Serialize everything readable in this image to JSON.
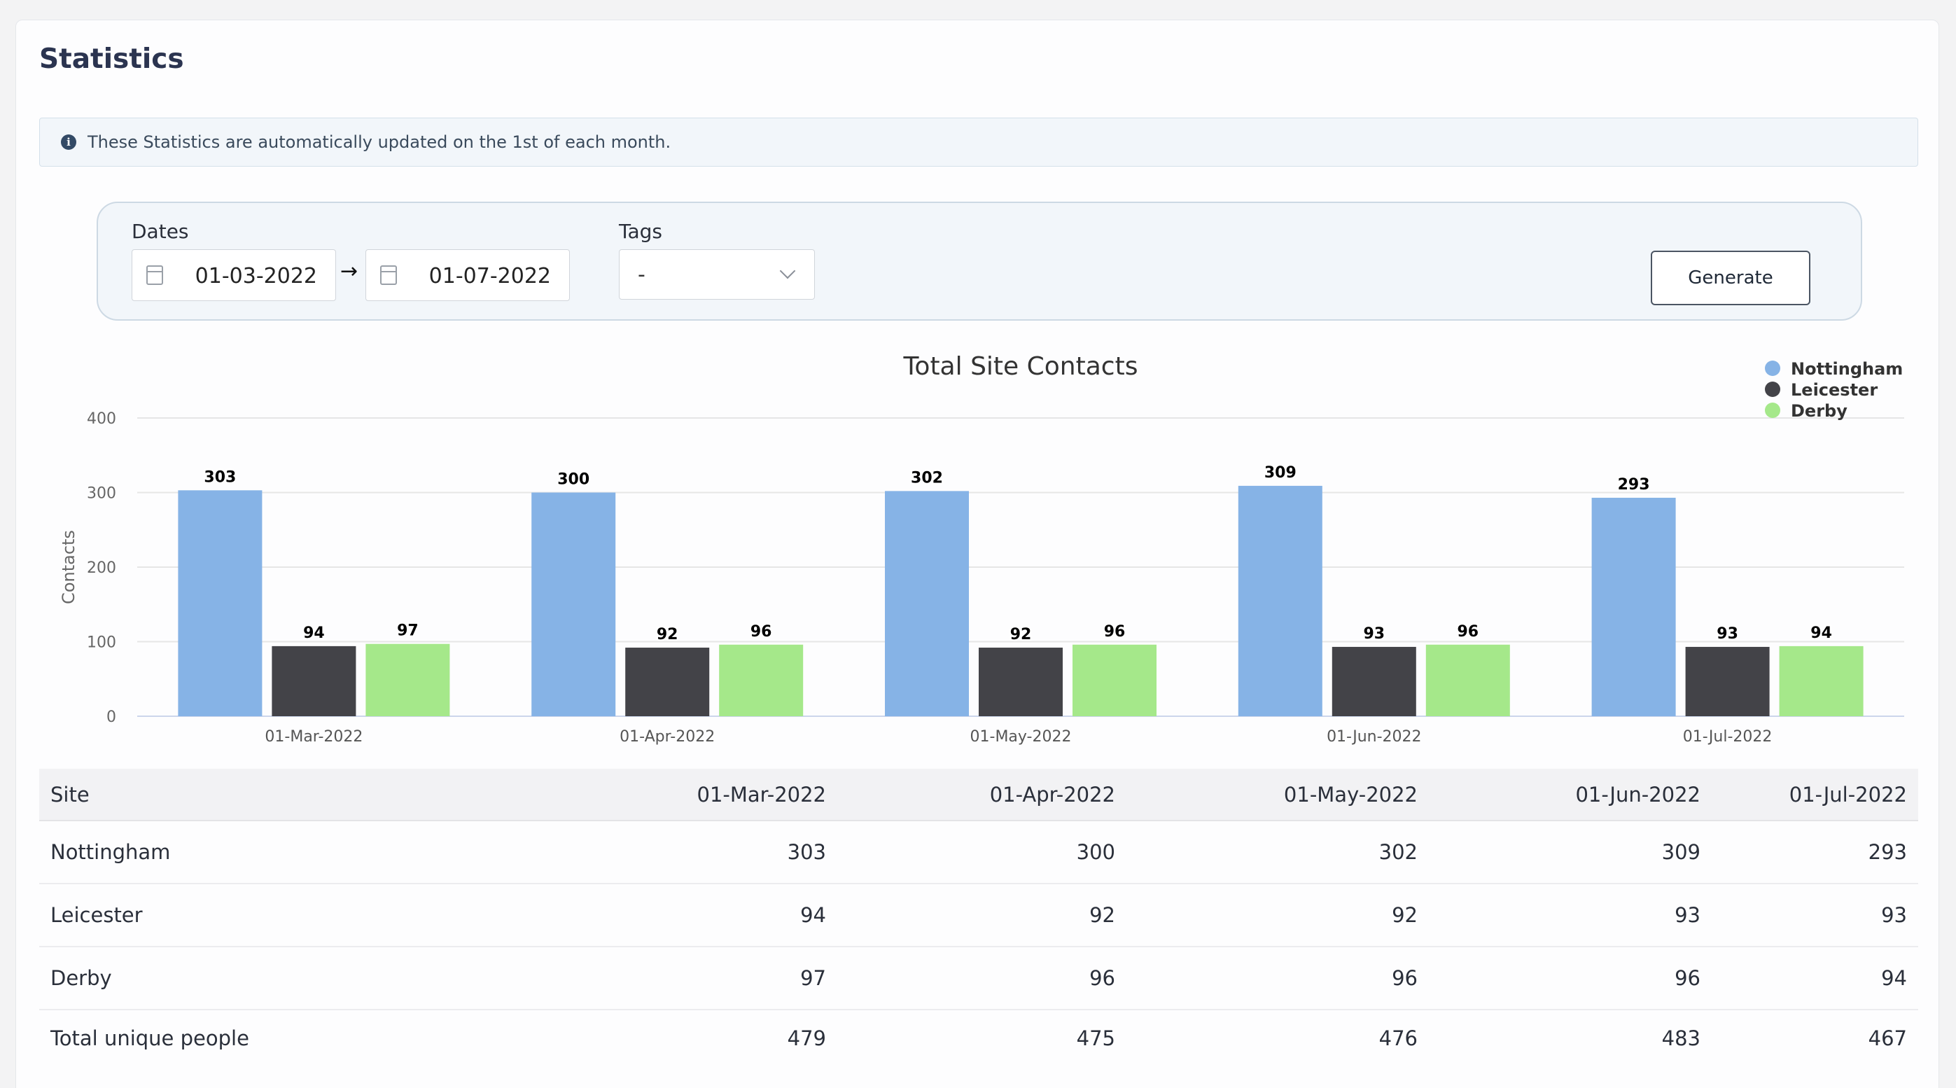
{
  "page": {
    "title": "Statistics"
  },
  "alert": {
    "text": "These Statistics are automatically updated on the 1st of each month.",
    "icon": "info-icon"
  },
  "filters": {
    "dates_label": "Dates",
    "start_date": "01-03-2022",
    "end_date": "01-07-2022",
    "arrow": "→",
    "tags_label": "Tags",
    "tags_value": "-",
    "generate_label": "Generate"
  },
  "chart_data": {
    "type": "bar",
    "title": "Total Site Contacts",
    "ylabel": "Contacts",
    "xlabel": "",
    "ylim": [
      0,
      400
    ],
    "yticks": [
      0,
      100,
      200,
      300,
      400
    ],
    "grid": true,
    "legend_position": "top-right",
    "categories": [
      "01-Mar-2022",
      "01-Apr-2022",
      "01-May-2022",
      "01-Jun-2022",
      "01-Jul-2022"
    ],
    "series": [
      {
        "name": "Nottingham",
        "color": "#86b3e6",
        "values": [
          303,
          300,
          302,
          309,
          293
        ]
      },
      {
        "name": "Leicester",
        "color": "#434348",
        "values": [
          94,
          92,
          92,
          93,
          93
        ]
      },
      {
        "name": "Derby",
        "color": "#a5e88a",
        "values": [
          97,
          96,
          96,
          96,
          94
        ]
      }
    ]
  },
  "table": {
    "headers": [
      "Site",
      "01-Mar-2022",
      "01-Apr-2022",
      "01-May-2022",
      "01-Jun-2022",
      "01-Jul-2022"
    ],
    "rows": [
      [
        "Nottingham",
        "303",
        "300",
        "302",
        "309",
        "293"
      ],
      [
        "Leicester",
        "94",
        "92",
        "92",
        "93",
        "93"
      ],
      [
        "Derby",
        "97",
        "96",
        "96",
        "96",
        "94"
      ],
      [
        "Total unique people",
        "479",
        "475",
        "476",
        "483",
        "467"
      ]
    ]
  }
}
